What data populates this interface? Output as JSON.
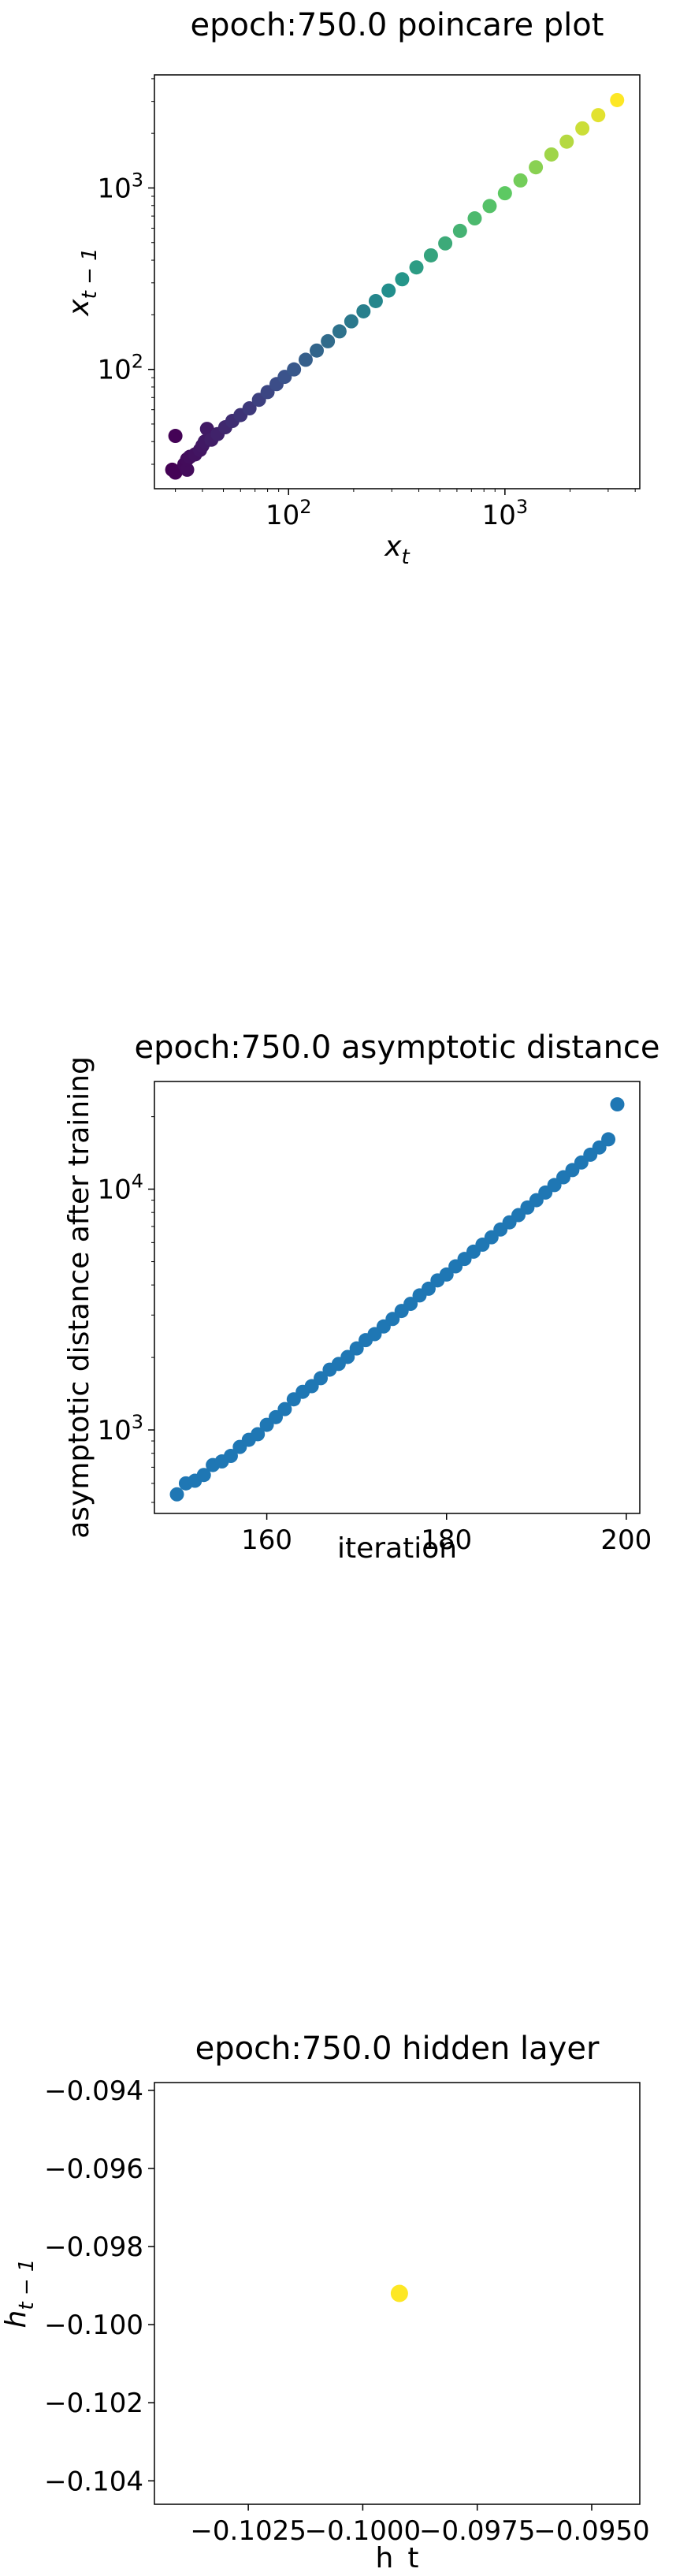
{
  "chart_data": [
    {
      "type": "scatter",
      "title": "epoch:750.0 poincare plot",
      "xlabel": "x",
      "xlabel_sub": "t",
      "ylabel": "x",
      "ylabel_sub": "t − 1",
      "xscale": "log",
      "yscale": "log",
      "xlim": [
        24,
        4200
      ],
      "ylim": [
        22,
        4200
      ],
      "xticks": [
        {
          "value": 100,
          "base": "10",
          "exp": "2"
        },
        {
          "value": 1000,
          "base": "10",
          "exp": "3"
        }
      ],
      "yticks": [
        {
          "value": 100,
          "base": "10",
          "exp": "2"
        },
        {
          "value": 1000,
          "base": "10",
          "exp": "3"
        }
      ],
      "colormap": [
        "#440154",
        "#3b528b",
        "#21918c",
        "#5ec962",
        "#fde725"
      ],
      "points": [
        {
          "x": 29,
          "y": 28
        },
        {
          "x": 30,
          "y": 27
        },
        {
          "x": 30,
          "y": 43
        },
        {
          "x": 33,
          "y": 30
        },
        {
          "x": 34,
          "y": 28
        },
        {
          "x": 34,
          "y": 32
        },
        {
          "x": 35,
          "y": 33
        },
        {
          "x": 37,
          "y": 34
        },
        {
          "x": 39,
          "y": 36
        },
        {
          "x": 40,
          "y": 38
        },
        {
          "x": 41,
          "y": 40
        },
        {
          "x": 42,
          "y": 47
        },
        {
          "x": 44,
          "y": 41
        },
        {
          "x": 47,
          "y": 44
        },
        {
          "x": 51,
          "y": 48
        },
        {
          "x": 55,
          "y": 52
        },
        {
          "x": 60,
          "y": 56
        },
        {
          "x": 66,
          "y": 61
        },
        {
          "x": 73,
          "y": 68
        },
        {
          "x": 80,
          "y": 75
        },
        {
          "x": 88,
          "y": 83
        },
        {
          "x": 96,
          "y": 91
        },
        {
          "x": 106,
          "y": 100
        },
        {
          "x": 120,
          "y": 113
        },
        {
          "x": 135,
          "y": 127
        },
        {
          "x": 152,
          "y": 143
        },
        {
          "x": 172,
          "y": 162
        },
        {
          "x": 195,
          "y": 184
        },
        {
          "x": 222,
          "y": 209
        },
        {
          "x": 253,
          "y": 238
        },
        {
          "x": 290,
          "y": 272
        },
        {
          "x": 335,
          "y": 314
        },
        {
          "x": 390,
          "y": 365
        },
        {
          "x": 455,
          "y": 425
        },
        {
          "x": 530,
          "y": 495
        },
        {
          "x": 620,
          "y": 580
        },
        {
          "x": 725,
          "y": 680
        },
        {
          "x": 850,
          "y": 795
        },
        {
          "x": 1000,
          "y": 935
        },
        {
          "x": 1180,
          "y": 1100
        },
        {
          "x": 1390,
          "y": 1300
        },
        {
          "x": 1640,
          "y": 1530
        },
        {
          "x": 1930,
          "y": 1800
        },
        {
          "x": 2280,
          "y": 2130
        },
        {
          "x": 2700,
          "y": 2520
        },
        {
          "x": 3300,
          "y": 3050
        }
      ]
    },
    {
      "type": "scatter",
      "title": "epoch:750.0 asymptotic distance",
      "xlabel": "iteration",
      "ylabel": "asymptotic distance after training",
      "xscale": "linear",
      "yscale": "log",
      "xlim": [
        147.5,
        201.5
      ],
      "ylim": [
        450,
        28000
      ],
      "xticks": [
        {
          "value": 160,
          "label": "160"
        },
        {
          "value": 180,
          "label": "180"
        },
        {
          "value": 200,
          "label": "200"
        }
      ],
      "yticks": [
        {
          "value": 1000,
          "base": "10",
          "exp": "3"
        },
        {
          "value": 10000,
          "base": "10",
          "exp": "4"
        }
      ],
      "color": "#1f77b4",
      "x": [
        150,
        151,
        152,
        153,
        154,
        155,
        156,
        157,
        158,
        159,
        160,
        161,
        162,
        163,
        164,
        165,
        166,
        167,
        168,
        169,
        170,
        171,
        172,
        173,
        174,
        175,
        176,
        177,
        178,
        179,
        180,
        181,
        182,
        183,
        184,
        185,
        186,
        187,
        188,
        189,
        190,
        191,
        192,
        193,
        194,
        195,
        196,
        197,
        198,
        199
      ],
      "y": [
        540,
        600,
        615,
        650,
        715,
        740,
        780,
        850,
        910,
        960,
        1050,
        1130,
        1220,
        1340,
        1440,
        1520,
        1640,
        1780,
        1880,
        2010,
        2180,
        2360,
        2500,
        2690,
        2890,
        3120,
        3340,
        3620,
        3860,
        4180,
        4420,
        4780,
        5130,
        5500,
        5880,
        6310,
        6800,
        7280,
        7800,
        8390,
        9000,
        9680,
        10400,
        11200,
        12000,
        12900,
        13900,
        14900,
        16100,
        22500
      ]
    },
    {
      "type": "scatter",
      "title": "epoch:750.0 hidden layer",
      "xlabel": "h_t",
      "ylabel": "h",
      "ylabel_sub": "t − 1",
      "xscale": "linear",
      "yscale": "linear",
      "xlim": [
        -0.10455,
        -0.09395
      ],
      "ylim": [
        -0.1046,
        -0.0938
      ],
      "xticks": [
        {
          "value": -0.1025,
          "label": "−0.1025"
        },
        {
          "value": -0.1,
          "label": "−0.1000"
        },
        {
          "value": -0.0975,
          "label": "−0.0975"
        },
        {
          "value": -0.095,
          "label": "−0.0950"
        }
      ],
      "yticks": [
        {
          "value": -0.094,
          "label": "−0.094"
        },
        {
          "value": -0.096,
          "label": "−0.096"
        },
        {
          "value": -0.098,
          "label": "−0.098"
        },
        {
          "value": -0.1,
          "label": "−0.100"
        },
        {
          "value": -0.102,
          "label": "−0.102"
        },
        {
          "value": -0.104,
          "label": "−0.104"
        }
      ],
      "color": "#fde725",
      "points": [
        {
          "x": -0.0992,
          "y": -0.0992
        }
      ]
    }
  ]
}
